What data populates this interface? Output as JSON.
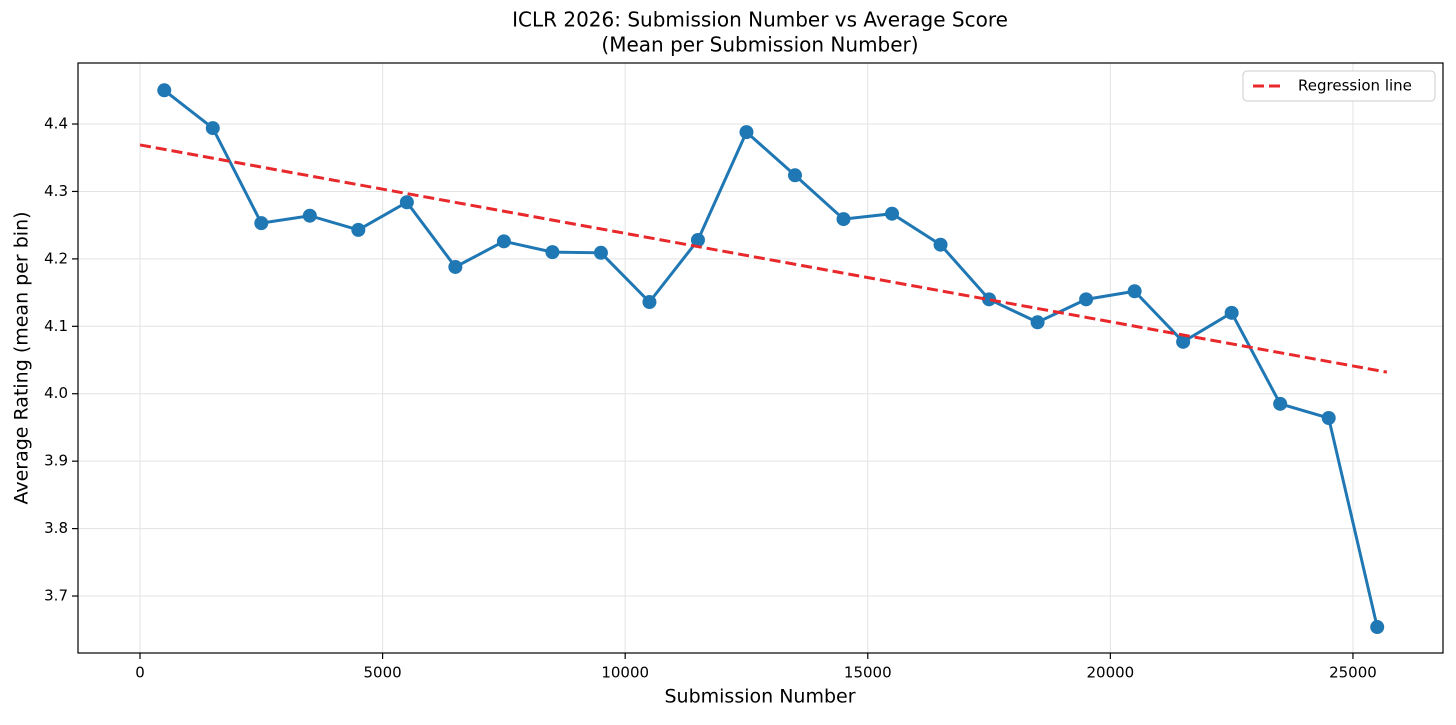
{
  "chart_data": {
    "type": "line",
    "title": "ICLR 2026: Submission Number vs Average Score",
    "subtitle": "(Mean per Submission Number)",
    "x_label": "Submission Number",
    "y_label": "Average Rating (mean per bin)",
    "xlim": [
      -1278,
      26856
    ],
    "ylim": [
      3.6155,
      4.4905
    ],
    "xticks": [
      0,
      5000,
      10000,
      15000,
      20000,
      25000
    ],
    "yticks": [
      3.7,
      3.8,
      3.9,
      {
        "value": 4,
        "label": "4.0"
      },
      4.1,
      4.2,
      4.3,
      4.4
    ],
    "grid": true,
    "legend": "upper right",
    "series": [
      {
        "color": "#1f77b4",
        "marker": "circle",
        "dashed": false,
        "x": [
          500,
          1500,
          2500,
          3500,
          4500,
          5500,
          6500,
          7500,
          8500,
          9500,
          10500,
          11500,
          12500,
          13500,
          14500,
          15500,
          16500,
          17500,
          18500,
          19500,
          20500,
          21500,
          22500,
          23500,
          24500,
          25500
        ],
        "values": [
          4.45,
          4.394,
          4.253,
          4.264,
          4.243,
          4.284,
          4.188,
          4.226,
          4.21,
          4.209,
          4.136,
          4.228,
          4.388,
          4.324,
          4.259,
          4.267,
          4.221,
          4.14,
          4.106,
          4.14,
          4.152,
          4.077,
          4.12,
          3.985,
          3.964,
          3.654
        ]
      },
      {
        "name": "Regression line",
        "color": "#e8282b",
        "dashed": true,
        "x": [
          0,
          25700
        ],
        "values": [
          4.369,
          4.032
        ]
      }
    ]
  }
}
